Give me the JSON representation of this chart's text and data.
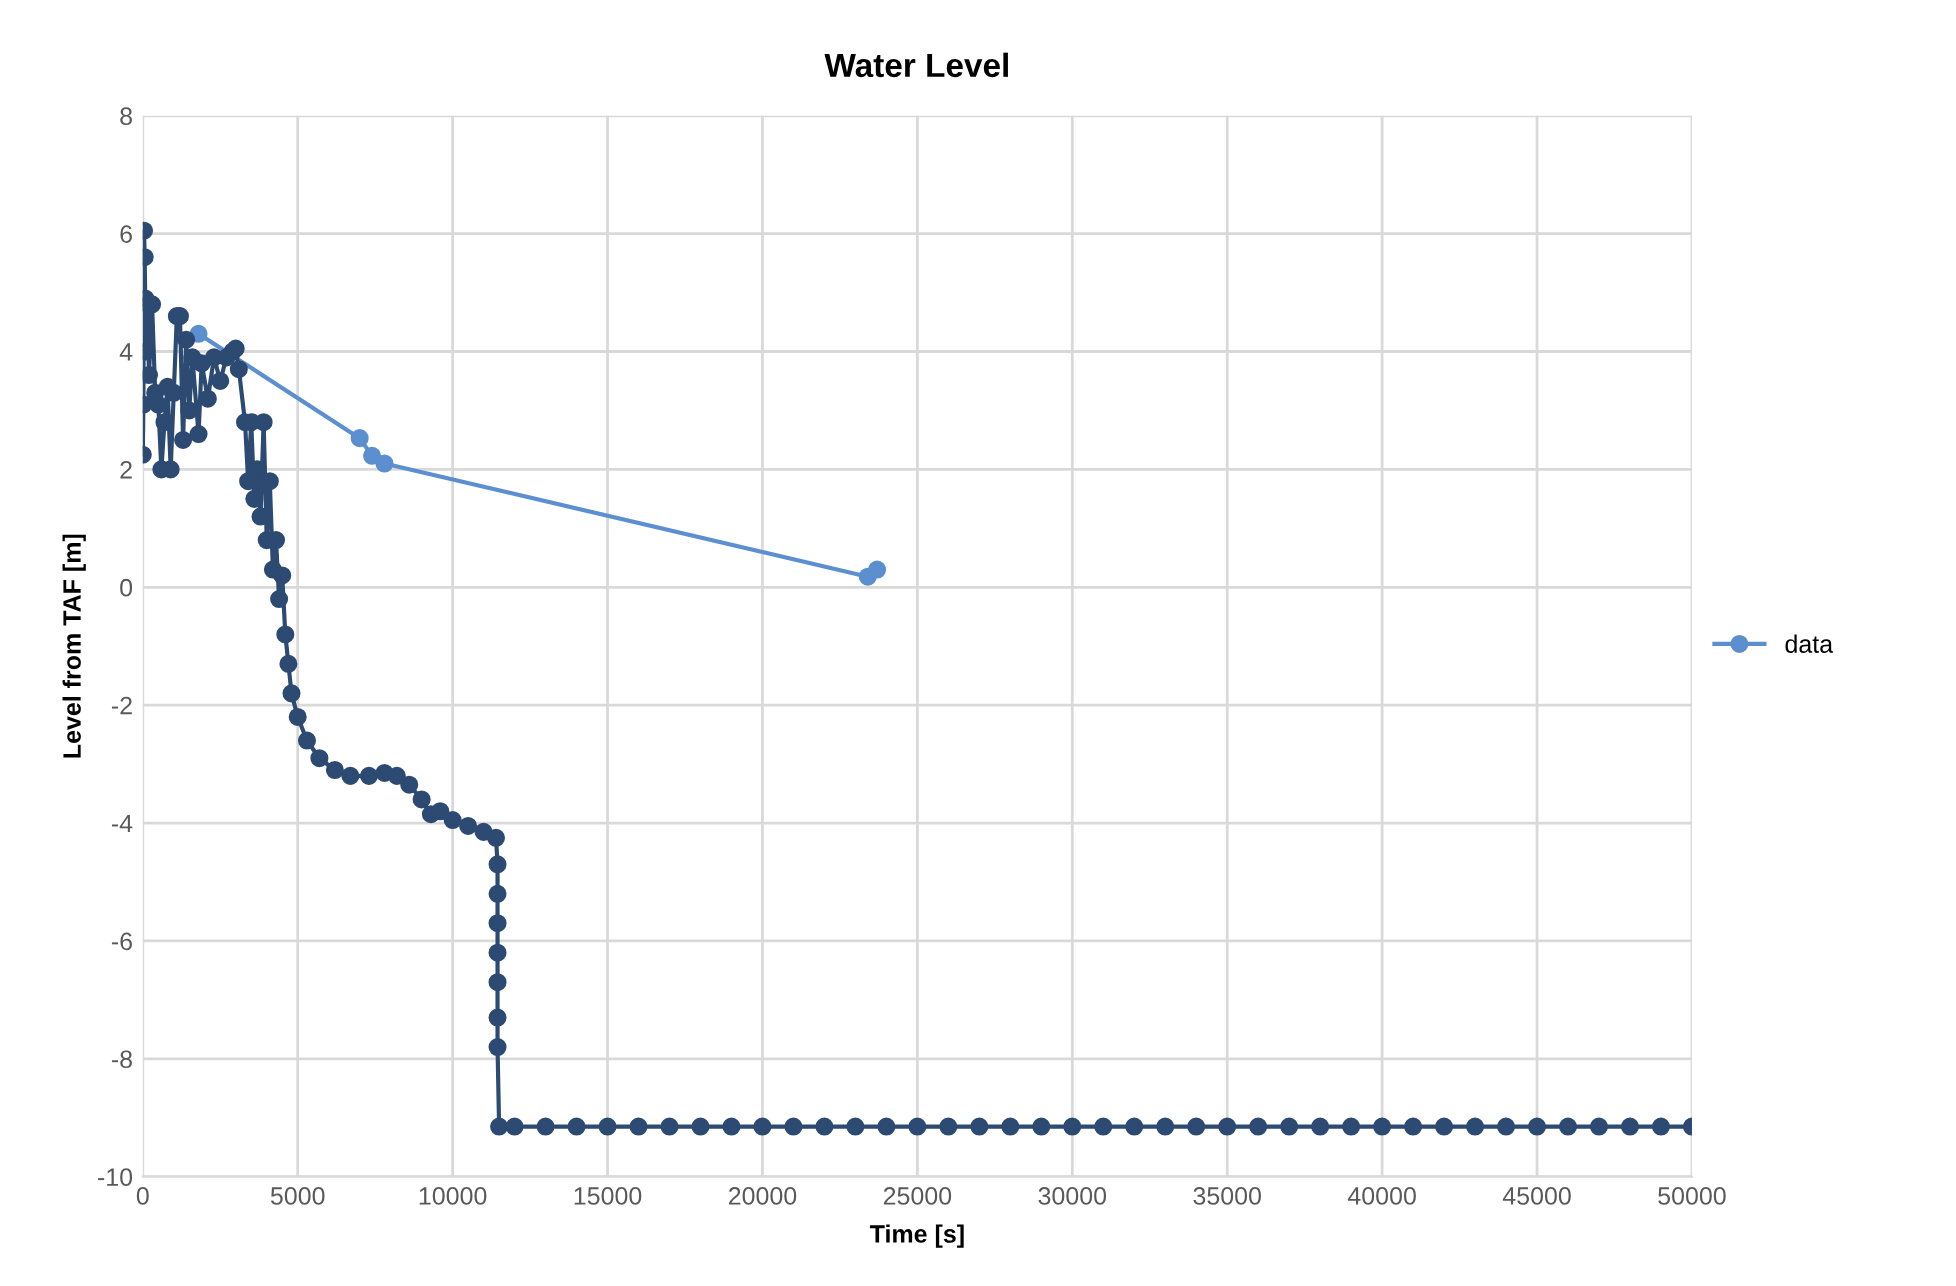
{
  "chart_data": {
    "type": "line",
    "title": "Water Level",
    "xlabel": "Time [s]",
    "ylabel": "Level from TAF [m]",
    "xlim": [
      0,
      50000
    ],
    "xticks": [
      0,
      5000,
      10000,
      15000,
      20000,
      25000,
      30000,
      35000,
      40000,
      45000,
      50000
    ],
    "ylim": [
      -10,
      8
    ],
    "yticks": [
      -10,
      -8,
      -6,
      -4,
      -2,
      0,
      2,
      4,
      6,
      8
    ],
    "grid": true,
    "legend": "right",
    "marker": "circle",
    "line_style": "solid",
    "series": [
      {
        "name": "data",
        "color": "#5b8fcf",
        "x": [
          1800,
          7000,
          7400,
          7800,
          23400,
          23700
        ],
        "values": [
          4.3,
          2.53,
          2.23,
          2.1,
          0.18,
          0.3
        ]
      },
      {
        "color": "#2c4a72",
        "x": [
          0,
          20,
          40,
          60,
          80,
          100,
          150,
          200,
          300,
          400,
          500,
          600,
          700,
          800,
          900,
          1000,
          1100,
          1200,
          1300,
          1400,
          1500,
          1600,
          1800,
          1900,
          2100,
          2300,
          2500,
          2700,
          2900,
          3000,
          3100,
          3300,
          3400,
          3500,
          3600,
          3700,
          3800,
          3900,
          4000,
          4100,
          4200,
          4300,
          4400,
          4500,
          4600,
          4700,
          4800,
          5000,
          5300,
          5700,
          6200,
          6700,
          7300,
          7800,
          8200,
          8600,
          9000,
          9300,
          9600,
          10000,
          10500,
          11000,
          11400,
          11450,
          11450,
          11450,
          11450,
          11450,
          11450,
          11450,
          11500,
          12000,
          13000,
          14000,
          15000,
          16000,
          17000,
          18000,
          19000,
          20000,
          21000,
          22000,
          23000,
          24000,
          25000,
          26000,
          27000,
          28000,
          29000,
          30000,
          31000,
          32000,
          33000,
          34000,
          35000,
          36000,
          37000,
          38000,
          39000,
          40000,
          41000,
          42000,
          43000,
          44000,
          45000,
          46000,
          47000,
          48000,
          49000,
          50000
        ],
        "values": [
          2.25,
          3.1,
          6.05,
          5.6,
          4.9,
          4.0,
          4.8,
          3.6,
          4.8,
          3.3,
          3.1,
          2.0,
          2.8,
          3.4,
          2.0,
          3.3,
          4.6,
          4.6,
          2.5,
          4.2,
          3.0,
          3.9,
          2.6,
          3.8,
          3.2,
          3.9,
          3.5,
          3.9,
          4.0,
          4.05,
          3.7,
          2.8,
          1.8,
          2.8,
          1.5,
          2.0,
          1.2,
          2.8,
          0.8,
          1.8,
          0.3,
          0.8,
          -0.2,
          0.2,
          -0.8,
          -1.3,
          -1.8,
          -2.2,
          -2.6,
          -2.9,
          -3.1,
          -3.2,
          -3.2,
          -3.15,
          -3.2,
          -3.35,
          -3.6,
          -3.85,
          -3.8,
          -3.95,
          -4.05,
          -4.15,
          -4.25,
          -4.7,
          -5.2,
          -5.7,
          -6.2,
          -6.7,
          -7.3,
          -7.8,
          -9.15,
          -9.15,
          -9.15,
          -9.15,
          -9.15,
          -9.15,
          -9.15,
          -9.15,
          -9.15,
          -9.15,
          -9.15,
          -9.15,
          -9.15,
          -9.15,
          -9.15,
          -9.15,
          -9.15,
          -9.15,
          -9.15,
          -9.15,
          -9.15,
          -9.15,
          -9.15,
          -9.15,
          -9.15,
          -9.15,
          -9.15,
          -9.15,
          -9.15,
          -9.15,
          -9.15,
          -9.15,
          -9.15,
          -9.15,
          -9.15,
          -9.15,
          -9.15,
          -9.15,
          -9.15,
          -9.15
        ]
      }
    ]
  }
}
